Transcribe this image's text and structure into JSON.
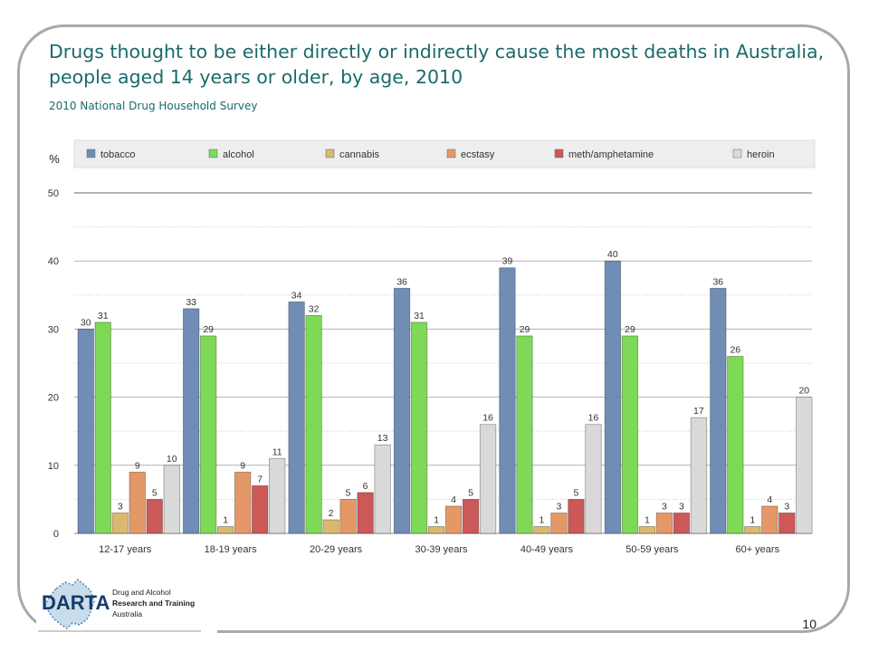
{
  "slide": {
    "title": "Drugs thought to be either directly or indirectly cause the most deaths in Australia, people aged 14 years or older, by age, 2010",
    "subtitle": "2010 National Drug Household Survey",
    "page_number": "10"
  },
  "logo": {
    "name": "DARTA",
    "line1": "Drug and Alcohol",
    "line2": "Research and Training",
    "line3": "Australia"
  },
  "colors": {
    "tobacco": "#6f8db5",
    "alcohol": "#7ed957",
    "cannabis": "#d9b870",
    "ecstasy": "#e59867",
    "meth/amphetamine": "#cc5858",
    "heroin": "#d9d9d9",
    "title": "#1a6a6a"
  },
  "chart_data": {
    "type": "bar",
    "ylabel": "%",
    "ylim": [
      0,
      50
    ],
    "yticks": [
      0,
      10,
      20,
      30,
      40,
      50
    ],
    "grid": true,
    "legend_position": "top",
    "categories": [
      "12-17 years",
      "18-19 years",
      "20-29 years",
      "30-39 years",
      "40-49 years",
      "50-59 years",
      "60+ years"
    ],
    "series": [
      {
        "name": "tobacco",
        "values": [
          30,
          33,
          34,
          36,
          39,
          40,
          36
        ]
      },
      {
        "name": "alcohol",
        "values": [
          31,
          29,
          32,
          31,
          29,
          29,
          26
        ]
      },
      {
        "name": "cannabis",
        "values": [
          3,
          1,
          2,
          1,
          1,
          1,
          1
        ]
      },
      {
        "name": "ecstasy",
        "values": [
          9,
          9,
          5,
          4,
          3,
          3,
          4
        ]
      },
      {
        "name": "meth/amphetamine",
        "values": [
          5,
          7,
          6,
          5,
          5,
          3,
          3
        ]
      },
      {
        "name": "heroin",
        "values": [
          10,
          11,
          13,
          16,
          16,
          17,
          20
        ]
      }
    ]
  }
}
